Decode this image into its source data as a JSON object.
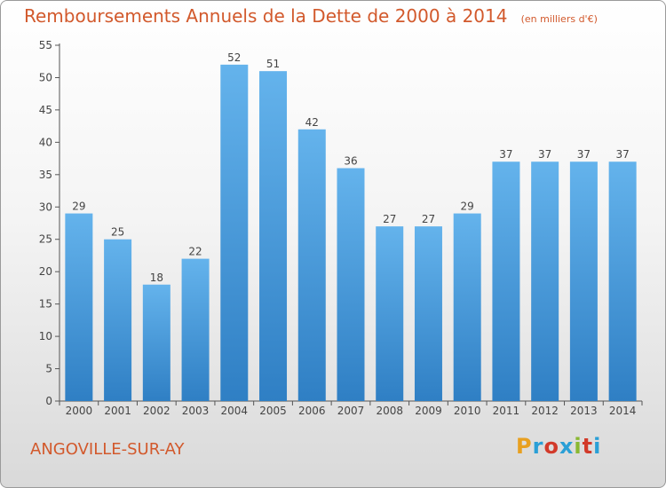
{
  "chart_data": {
    "type": "bar",
    "title": "Remboursements Annuels de la Dette de 2000 à 2014",
    "subtitle": "(en milliers d'€)",
    "categories": [
      "2000",
      "2001",
      "2002",
      "2003",
      "2004",
      "2005",
      "2006",
      "2007",
      "2008",
      "2009",
      "2010",
      "2011",
      "2012",
      "2013",
      "2014"
    ],
    "values": [
      29,
      25,
      18,
      22,
      52,
      51,
      42,
      36,
      27,
      27,
      29,
      37,
      37,
      37,
      37
    ],
    "ylim": [
      0,
      55
    ],
    "yticks": [
      0,
      5,
      10,
      15,
      20,
      25,
      30,
      35,
      40,
      45,
      50,
      55
    ],
    "grid": false,
    "bar_color": "#4a9ee0"
  },
  "footer": {
    "commune": "ANGOVILLE-SUR-AY",
    "logo_text": "Proxiti",
    "logo_colors": [
      "#e8a020",
      "#2a9fd6",
      "#d23a2a",
      "#2a9fd6",
      "#8ab832",
      "#d23a2a",
      "#2a9fd6"
    ]
  }
}
